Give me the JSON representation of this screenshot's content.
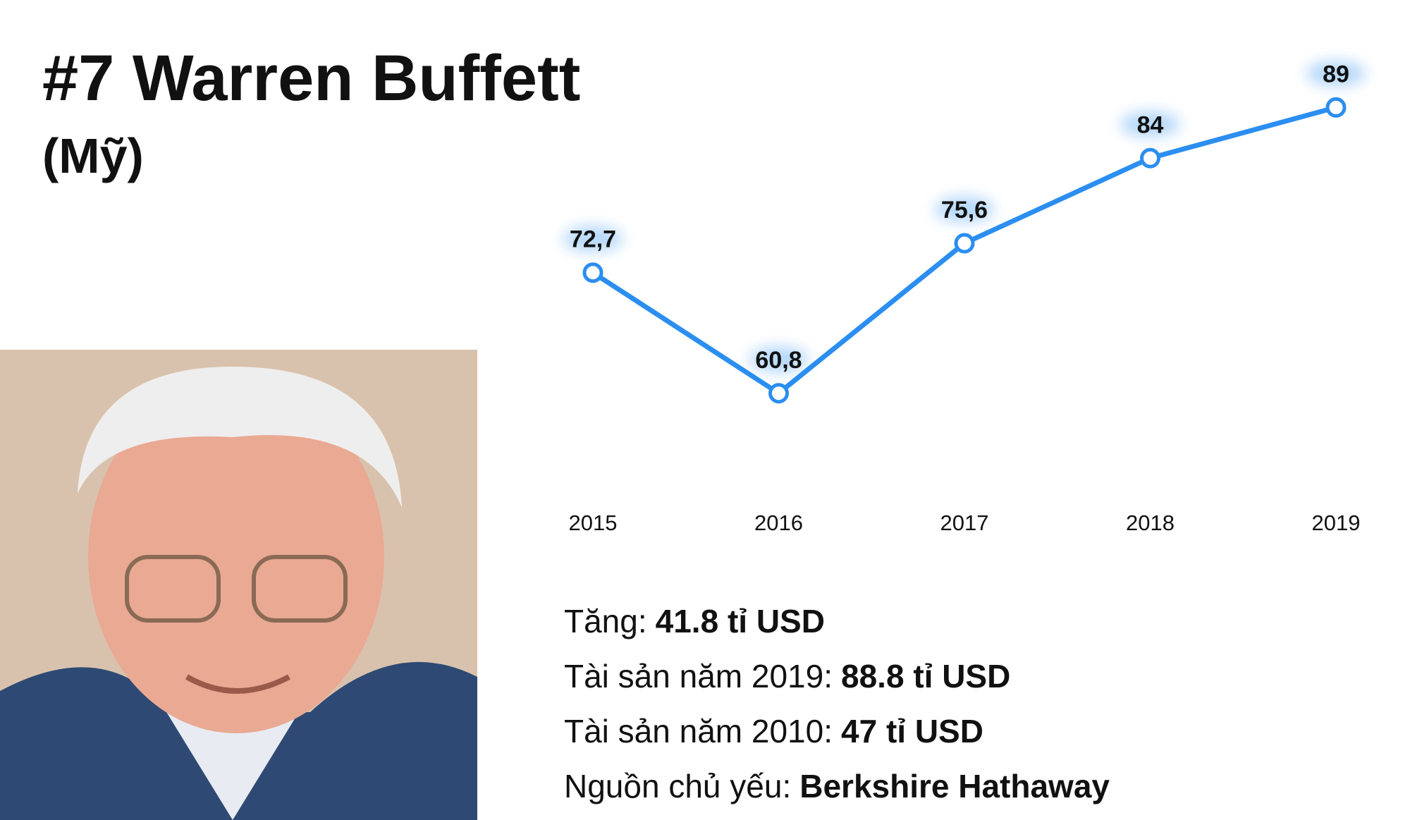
{
  "title": "#7 Warren Buffett",
  "subtitle": "(Mỹ)",
  "chart_data": {
    "type": "line",
    "categories": [
      "2015",
      "2016",
      "2017",
      "2018",
      "2019"
    ],
    "series": [
      {
        "color": "#2b8ef0",
        "values": [
          72.7,
          60.8,
          75.6,
          84,
          89
        ],
        "value_labels": [
          "72,7",
          "60,8",
          "75,6",
          "84",
          "89"
        ]
      }
    ],
    "ylim": [
      50,
      90
    ]
  },
  "facts": [
    {
      "label": "Tăng:",
      "value": "41.8 tỉ USD"
    },
    {
      "label": "Tài sản năm 2019:",
      "value": "88.8 tỉ USD"
    },
    {
      "label": "Tài sản năm 2010:",
      "value": "47 tỉ USD"
    },
    {
      "label": "Nguồn chủ yếu:",
      "value": "Berkshire Hathaway"
    }
  ]
}
